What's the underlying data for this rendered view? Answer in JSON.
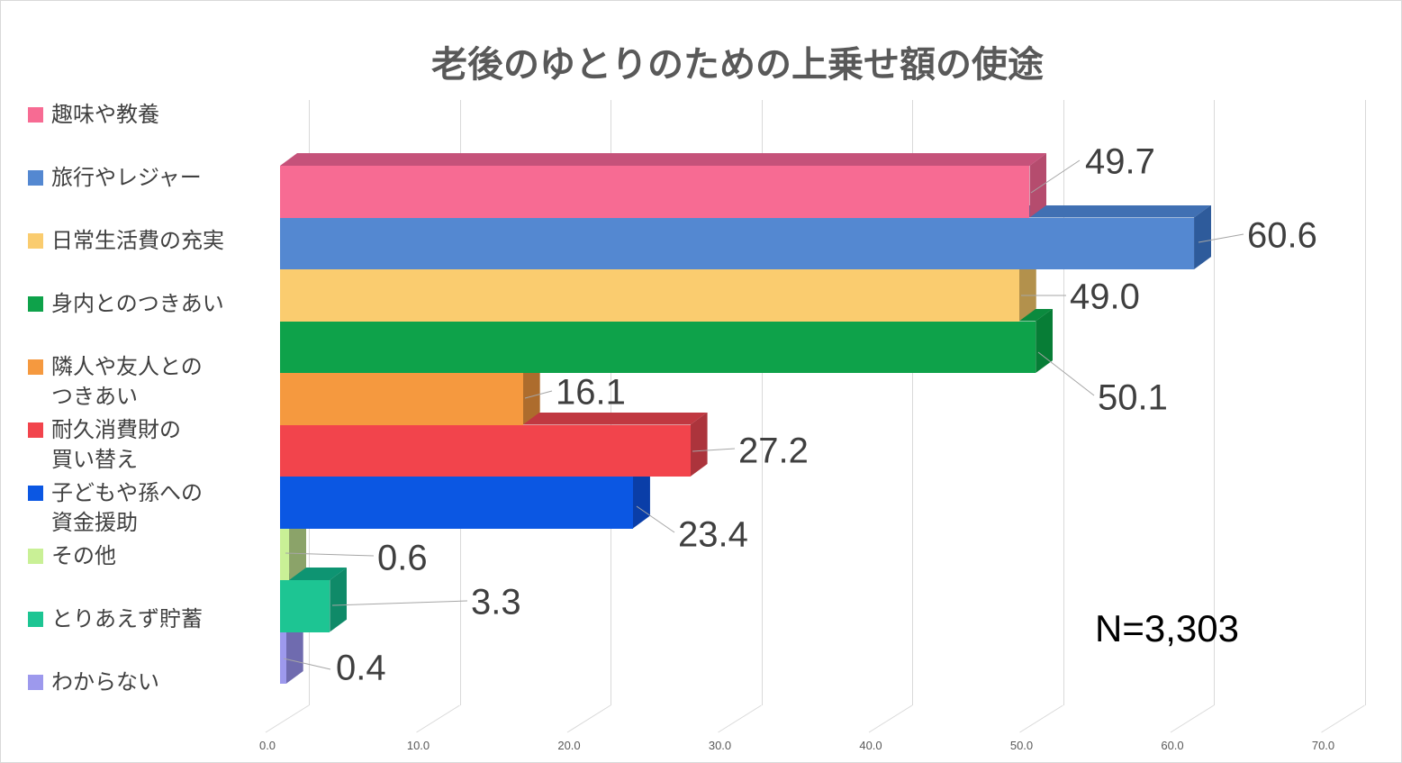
{
  "title": "老後のゆとりのための上乗せ額の使途",
  "annotation": "N=3,303",
  "chart_data": {
    "type": "bar",
    "orientation": "horizontal",
    "style": "3d",
    "title": "老後のゆとりのための上乗せ額の使途",
    "categories": [
      "趣味や教養",
      "旅行やレジャー",
      "日常生活費の充実",
      "身内とのつきあい",
      "隣人や友人との\nつきあい",
      "耐久消費財の\n買い替え",
      "子どもや孫への\n資金援助",
      "その他",
      "とりあえず貯蓄",
      "わからない"
    ],
    "values": [
      49.7,
      60.6,
      49.0,
      50.1,
      16.1,
      27.2,
      23.4,
      0.6,
      3.3,
      0.4
    ],
    "value_labels": [
      "49.7",
      "60.6",
      "49.0",
      "50.1",
      "16.1",
      "27.2",
      "23.4",
      "0.6",
      "3.3",
      "0.4"
    ],
    "colors_front": [
      "#F76B93",
      "#5488D1",
      "#FACC6F",
      "#0EA24A",
      "#F5993F",
      "#F2444C",
      "#0B57E3",
      "#C9F096",
      "#1DC593",
      "#9D99ED"
    ],
    "colors_top": [
      "#C5527A",
      "#4070B3",
      "#C79E52",
      "#0B8A3E",
      "#C0742E",
      "#C03841",
      "#0A46B8",
      "#9DBA72",
      "#0E9472",
      "#7A75BD"
    ],
    "colors_side": [
      "#B54C6E",
      "#2E5B9B",
      "#B3914C",
      "#077D36",
      "#AD6C2D",
      "#AC343C",
      "#0A3EA8",
      "#8BA369",
      "#0F8A68",
      "#6F6BAF"
    ],
    "xlim": [
      0,
      70
    ],
    "x_ticks": [
      "0.0",
      "10.0",
      "20.0",
      "30.0",
      "40.0",
      "50.0",
      "60.0",
      "70.0"
    ],
    "grid": true,
    "legend_position": "left",
    "sample_size": "N=3,303",
    "grid_color": "#D9D9D9",
    "leader_line_color": "#A6A6A6",
    "value_label_color": "#3F3F3F",
    "title_color": "#595959",
    "legend_text_color": "#404040",
    "axis_text_color": "#595959"
  }
}
